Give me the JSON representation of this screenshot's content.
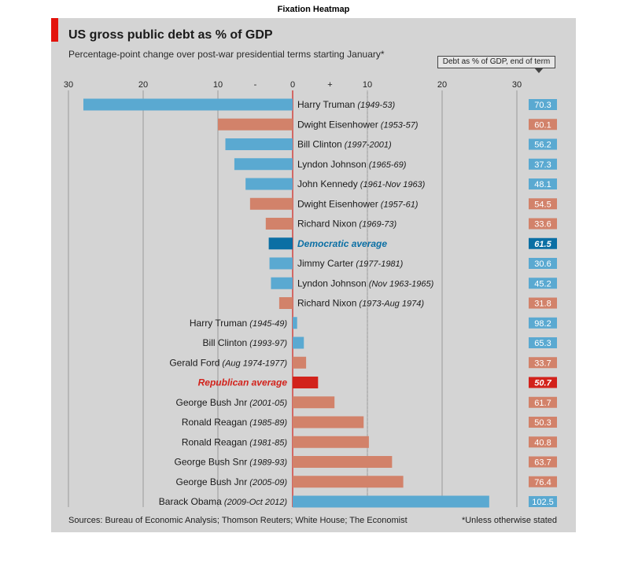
{
  "figure_title": "Fixation Heatmap",
  "header": {
    "title": "US gross public debt as % of GDP",
    "subtitle": "Percentage-point change over post-war presidential terms starting January*",
    "debt_column_label": "Debt as % of GDP, end of term"
  },
  "footer": {
    "source": "Sources: Bureau of Economic Analysis; Thomson Reuters; White House; The Economist",
    "note": "*Unless otherwise stated"
  },
  "colors": {
    "democrat": "#5aa9d1",
    "republican": "#d2826a",
    "democrat_avg": "#0b6fa4",
    "republican_avg": "#d2221b",
    "zero_line": "#d2221b",
    "panel": "#d4d4d4"
  },
  "chart_data": {
    "type": "bar",
    "orientation": "horizontal",
    "xlim": [
      -30,
      30
    ],
    "x_ticks": [
      30,
      20,
      10,
      "-",
      0,
      "+",
      10,
      20,
      30
    ],
    "grid": true,
    "rows": [
      {
        "name": "Harry Truman",
        "period": "(1949-53)",
        "value": -28,
        "debt": "70.3",
        "party": "D",
        "right": true
      },
      {
        "name": "Dwight Eisenhower",
        "period": "(1953-57)",
        "value": -10,
        "debt": "60.1",
        "party": "R",
        "right": true
      },
      {
        "name": "Bill Clinton",
        "period": "(1997-2001)",
        "value": -9,
        "debt": "56.2",
        "party": "D",
        "right": true
      },
      {
        "name": "Lyndon Johnson",
        "period": "(1965-69)",
        "value": -7.8,
        "debt": "37.3",
        "party": "D",
        "right": true
      },
      {
        "name": "John Kennedy",
        "period": "(1961-Nov 1963)",
        "value": -6.3,
        "debt": "48.1",
        "party": "D",
        "right": true
      },
      {
        "name": "Dwight Eisenhower",
        "period": "(1957-61)",
        "value": -5.7,
        "debt": "54.5",
        "party": "R",
        "right": true
      },
      {
        "name": "Richard Nixon",
        "period": "(1969-73)",
        "value": -3.6,
        "debt": "33.6",
        "party": "R",
        "right": true
      },
      {
        "name": "Democratic average",
        "period": "",
        "value": -3.2,
        "debt": "61.5",
        "party": "D",
        "right": true,
        "average": true
      },
      {
        "name": "Jimmy Carter",
        "period": "(1977-1981)",
        "value": -3.1,
        "debt": "30.6",
        "party": "D",
        "right": true
      },
      {
        "name": "Lyndon Johnson",
        "period": "(Nov 1963-1965)",
        "value": -2.9,
        "debt": "45.2",
        "party": "D",
        "right": true
      },
      {
        "name": "Richard Nixon",
        "period": "(1973-Aug 1974)",
        "value": -1.8,
        "debt": "31.8",
        "party": "R",
        "right": true
      },
      {
        "name": "Harry Truman",
        "period": "(1945-49)",
        "value": 0.6,
        "debt": "98.2",
        "party": "D",
        "right": false
      },
      {
        "name": "Bill Clinton",
        "period": "(1993-97)",
        "value": 1.5,
        "debt": "65.3",
        "party": "D",
        "right": false
      },
      {
        "name": "Gerald Ford",
        "period": "(Aug 1974-1977)",
        "value": 1.8,
        "debt": "33.7",
        "party": "R",
        "right": false
      },
      {
        "name": "Republican average",
        "period": "",
        "value": 3.4,
        "debt": "50.7",
        "party": "R",
        "right": false,
        "average": true
      },
      {
        "name": "George Bush Jnr",
        "period": "(2001-05)",
        "value": 5.6,
        "debt": "61.7",
        "party": "R",
        "right": false
      },
      {
        "name": "Ronald Reagan",
        "period": "(1985-89)",
        "value": 9.5,
        "debt": "50.3",
        "party": "R",
        "right": false
      },
      {
        "name": "Ronald Reagan",
        "period": "(1981-85)",
        "value": 10.2,
        "debt": "40.8",
        "party": "R",
        "right": false
      },
      {
        "name": "George Bush Snr",
        "period": "(1989-93)",
        "value": 13.3,
        "debt": "63.7",
        "party": "R",
        "right": false
      },
      {
        "name": "George Bush Jnr",
        "period": "(2005-09)",
        "value": 14.8,
        "debt": "76.4",
        "party": "R",
        "right": false
      },
      {
        "name": "Barack Obama",
        "period": "(2009-Oct 2012)",
        "value": 26.3,
        "debt": "102.5",
        "party": "D",
        "right": false
      }
    ]
  }
}
